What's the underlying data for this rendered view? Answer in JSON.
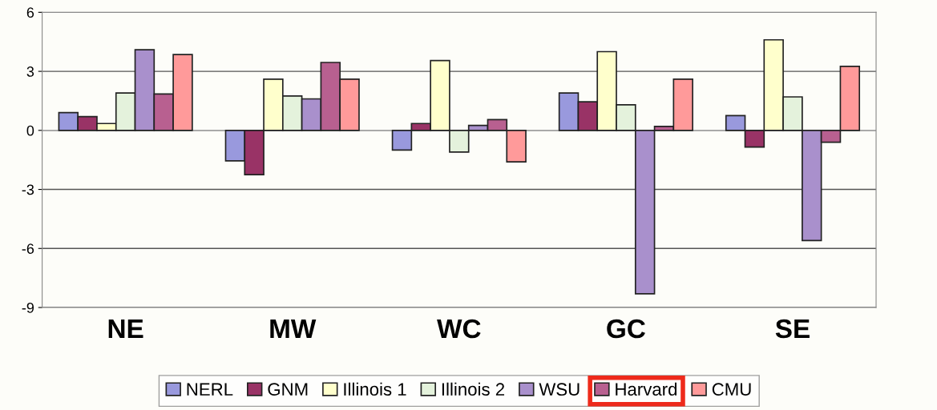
{
  "chart_data": {
    "type": "bar",
    "categories": [
      "NE",
      "MW",
      "WC",
      "GC",
      "SE"
    ],
    "series": [
      {
        "name": "NERL",
        "color": "#9999dd",
        "values": [
          0.9,
          -1.55,
          -1.0,
          1.9,
          0.75
        ]
      },
      {
        "name": "GNM",
        "color": "#993366",
        "values": [
          0.7,
          -2.25,
          0.35,
          1.45,
          -0.85
        ]
      },
      {
        "name": "Illinois 1",
        "color": "#ffffcc",
        "values": [
          0.35,
          2.6,
          3.55,
          4.0,
          4.6
        ]
      },
      {
        "name": "Illinois 2",
        "color": "#e4f2dc",
        "values": [
          1.9,
          1.75,
          -1.1,
          1.3,
          1.7
        ]
      },
      {
        "name": "WSU",
        "color": "#a990cc",
        "values": [
          4.1,
          1.6,
          0.25,
          -8.3,
          -5.6
        ]
      },
      {
        "name": "Harvard",
        "color": "#b86090",
        "values": [
          1.85,
          3.45,
          0.55,
          0.2,
          -0.6
        ]
      },
      {
        "name": "CMU",
        "color": "#ff9a9a",
        "values": [
          3.85,
          2.6,
          -1.6,
          2.6,
          3.25
        ]
      }
    ],
    "ylim": [
      -9,
      6
    ],
    "yticks": [
      6,
      3,
      0,
      -3,
      -6,
      -9
    ],
    "grid": "y",
    "legend": "bottom"
  }
}
